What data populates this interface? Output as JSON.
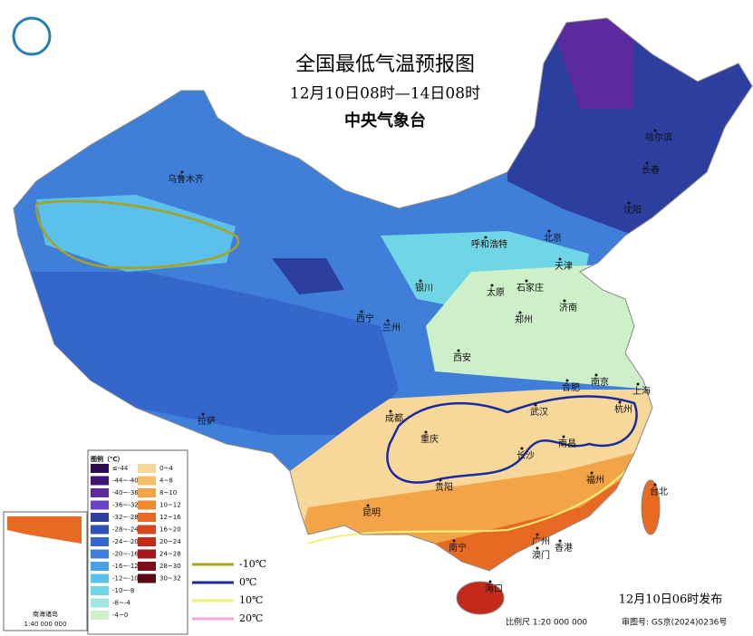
{
  "header": {
    "title": "全国最低气温预报图",
    "subtitle": "12月10日08时—14日08时",
    "agency": "中央气象台"
  },
  "cities": [
    "哈尔滨",
    "长春",
    "沈阳",
    "乌鲁木齐",
    "呼和浩特",
    "北京",
    "天津",
    "银川",
    "太原",
    "石家庄",
    "济南",
    "西宁",
    "兰州",
    "郑州",
    "西安",
    "合肥",
    "南京",
    "上海",
    "杭州",
    "拉萨",
    "成都",
    "武汉",
    "重庆",
    "长沙",
    "南昌",
    "贵阳",
    "福州",
    "台北",
    "昆明",
    "南宁",
    "广州",
    "澳门",
    "香港",
    "海口"
  ],
  "legend": {
    "title": "图例（℃）",
    "left": [
      {
        "label": "≤-44",
        "color": "#2b0a4f"
      },
      {
        "label": "-44~-40",
        "color": "#3f1676"
      },
      {
        "label": "-40~-36",
        "color": "#5a2a9e"
      },
      {
        "label": "-36~-32",
        "color": "#6a44c4"
      },
      {
        "label": "-32~-28",
        "color": "#2c3f9e"
      },
      {
        "label": "-28~-24",
        "color": "#2f50b8"
      },
      {
        "label": "-24~-20",
        "color": "#3566cc"
      },
      {
        "label": "-20~-16",
        "color": "#3f7fd9"
      },
      {
        "label": "-16~-12",
        "color": "#4aa0e6"
      },
      {
        "label": "-12~-10",
        "color": "#5cc0ec"
      },
      {
        "label": "-10~-8",
        "color": "#6fd6e6"
      },
      {
        "label": "-8~-4",
        "color": "#9fe6e4"
      },
      {
        "label": "-4~0",
        "color": "#cdf0c8"
      }
    ],
    "right": [
      {
        "label": "0~4",
        "color": "#f8d79a"
      },
      {
        "label": "4~8",
        "color": "#f5bf6c"
      },
      {
        "label": "8~10",
        "color": "#f3a447"
      },
      {
        "label": "10~12",
        "color": "#ef8a2e"
      },
      {
        "label": "12~16",
        "color": "#e86a22"
      },
      {
        "label": "16~20",
        "color": "#d9451c"
      },
      {
        "label": "20~24",
        "color": "#c42a1a"
      },
      {
        "label": "24~28",
        "color": "#a3161a"
      },
      {
        "label": "28~30",
        "color": "#7e0e16"
      },
      {
        "label": "30~32",
        "color": "#5a0a10"
      }
    ]
  },
  "isotherms": [
    {
      "label": "-10℃",
      "color": "#a8a21c"
    },
    {
      "label": "0℃",
      "color": "#1a2aa0"
    },
    {
      "label": "10℃",
      "color": "#f3f07a"
    },
    {
      "label": "20℃",
      "color": "#f0a8d8"
    }
  ],
  "footer": {
    "release": "12月10日06时发布",
    "scale": "比例尺 1:20 000 000",
    "approval": "审图号: GS京(2024)0236号"
  },
  "inset": {
    "title": "南海诸岛",
    "scale": "1:40 000 000"
  }
}
